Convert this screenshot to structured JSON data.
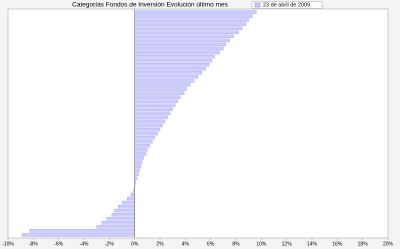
{
  "chart_data": {
    "type": "hbar",
    "title": "Categorías Fondos de Inversión Evolución último mes",
    "categories": [
      null,
      null,
      null,
      null,
      null,
      null,
      null,
      null,
      null,
      null,
      null,
      null,
      null,
      null,
      null,
      null,
      null,
      null,
      null,
      null,
      null,
      null,
      null,
      null,
      null,
      null,
      null,
      null,
      null,
      null,
      null,
      null,
      null,
      null,
      null,
      null,
      null,
      null,
      null,
      null,
      null,
      null,
      null,
      null,
      null,
      null,
      null,
      null,
      null,
      null,
      null,
      null,
      null,
      null,
      null,
      null
    ],
    "series": [
      {
        "name": "23 de abril de 2009",
        "color": "#ccccff",
        "values": [
          9.6,
          9.3,
          9.0,
          8.8,
          8.5,
          8.2,
          7.8,
          7.5,
          7.2,
          7.0,
          6.7,
          6.3,
          6.1,
          5.9,
          5.6,
          5.3,
          5.0,
          4.7,
          4.4,
          4.1,
          3.9,
          3.6,
          3.4,
          3.2,
          3.0,
          2.8,
          2.6,
          2.4,
          2.2,
          2.0,
          1.8,
          1.6,
          1.4,
          1.2,
          1.0,
          0.9,
          0.7,
          0.6,
          0.5,
          0.4,
          0.3,
          0.2,
          0.1,
          0.05,
          -0.1,
          -0.3,
          -0.6,
          -1.0,
          -1.3,
          -1.6,
          -1.8,
          -2.2,
          -2.6,
          -3.0,
          -8.3,
          -8.9
        ]
      }
    ],
    "xlim": [
      -10,
      20
    ],
    "xticks": [
      {
        "value": -10,
        "label": "-10%"
      },
      {
        "value": -8,
        "label": "-8%"
      },
      {
        "value": -6,
        "label": "-6%"
      },
      {
        "value": -4,
        "label": "-4%"
      },
      {
        "value": -2,
        "label": "-2%"
      },
      {
        "value": 0,
        "label": "0%"
      },
      {
        "value": 2,
        "label": "2%"
      },
      {
        "value": 4,
        "label": "4%"
      },
      {
        "value": 6,
        "label": "6%"
      },
      {
        "value": 8,
        "label": "8%"
      },
      {
        "value": 10,
        "label": "10%"
      },
      {
        "value": 12,
        "label": "12%"
      },
      {
        "value": 14,
        "label": "14%"
      },
      {
        "value": 16,
        "label": "16%"
      },
      {
        "value": 18,
        "label": "18%"
      },
      {
        "value": 20,
        "label": "20%"
      }
    ]
  }
}
